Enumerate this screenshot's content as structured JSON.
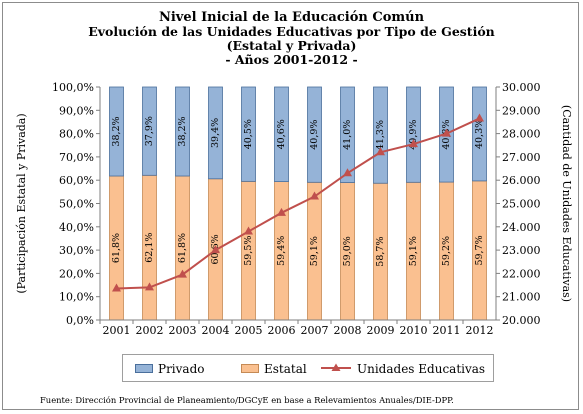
{
  "chart_data": {
    "type": "bar",
    "stacked": true,
    "title": "Nivel Inicial de la Educación Común",
    "subtitle_lines": [
      "Evolución de las Unidades Educativas por Tipo de Gestión",
      "(Estatal y Privada)",
      "- Años 2001-2012 -"
    ],
    "categories": [
      "2001",
      "2002",
      "2003",
      "2004",
      "2005",
      "2006",
      "2007",
      "2008",
      "2009",
      "2010",
      "2011",
      "2012"
    ],
    "series": [
      {
        "name": "Estatal",
        "axis": "left",
        "color": "#fac090",
        "values": [
          61.8,
          62.1,
          61.8,
          60.6,
          59.5,
          59.4,
          59.1,
          59.0,
          58.7,
          59.1,
          59.2,
          59.7
        ],
        "labels": [
          "61,8%",
          "62,1%",
          "61,8%",
          "60,6%",
          "59,5%",
          "59,4%",
          "59,1%",
          "59,0%",
          "58,7%",
          "59,1%",
          "59,2%",
          "59,7%"
        ]
      },
      {
        "name": "Privado",
        "axis": "left",
        "color": "#95b3d7",
        "values": [
          38.2,
          37.9,
          38.2,
          39.4,
          40.5,
          40.6,
          40.9,
          41.0,
          41.3,
          40.9,
          40.8,
          40.3
        ],
        "labels": [
          "38,2%",
          "37,9%",
          "38,2%",
          "39,4%",
          "40,5%",
          "40,6%",
          "40,9%",
          "41,0%",
          "41,3%",
          "40,9%",
          "40,8%",
          "40,3%"
        ]
      },
      {
        "name": "Unidades Educativas",
        "axis": "right",
        "type": "line",
        "color": "#c0504d",
        "values": [
          21350,
          21400,
          21950,
          23000,
          23800,
          24600,
          25300,
          26300,
          27200,
          27550,
          28000,
          28650
        ]
      }
    ],
    "legend_order": [
      "Privado",
      "Estatal",
      "Unidades Educativas"
    ],
    "ylabel": "(Participación Estatal y Privada)",
    "y2label": "(Cantidad de Unidades Educativas)",
    "ylim": [
      0,
      100
    ],
    "y2lim": [
      20000,
      30000
    ],
    "yticks": [
      "0,0%",
      "10,0%",
      "20,0%",
      "30,0%",
      "40,0%",
      "50,0%",
      "60,0%",
      "70,0%",
      "80,0%",
      "90,0%",
      "100,0%"
    ],
    "y2ticks": [
      "20.000",
      "21.000",
      "22.000",
      "23.000",
      "24.000",
      "25.000",
      "26.000",
      "27.000",
      "28.000",
      "29.000",
      "30.000"
    ],
    "legend_position": "bottom",
    "grid": false
  },
  "source": "Fuente: Dirección Provincial de Planeamiento/DGCyE en base a Relevamientos Anuales/DIE-DPP."
}
